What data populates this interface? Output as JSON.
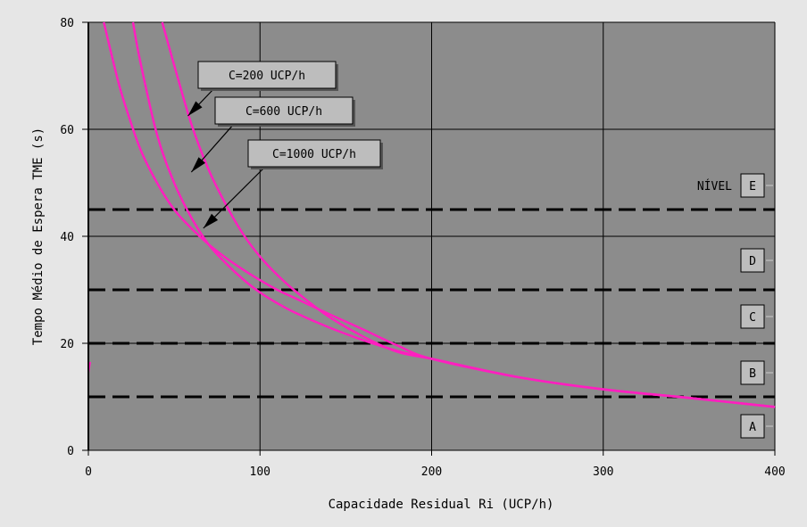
{
  "chart_data": {
    "type": "line",
    "xlabel": "Capacidade Residual Ri (UCP/h)",
    "ylabel": "Tempo Médio de Espera TME (s)",
    "xlim": [
      0,
      400
    ],
    "ylim": [
      0,
      80
    ],
    "xticks": [
      0,
      100,
      200,
      300,
      400
    ],
    "yticks": [
      0,
      20,
      40,
      60,
      80
    ],
    "grid": true,
    "colors": {
      "background": "#e6e6e6",
      "plot_area": "#8c8c8c",
      "series": "#ff1fbf",
      "grid": "#000000"
    },
    "series": [
      {
        "name": "C=200 UCP/h",
        "x": [
          43,
          50,
          60,
          70,
          80,
          90,
          100,
          110,
          120,
          140,
          160,
          180,
          200,
          250,
          300,
          350,
          400
        ],
        "y": [
          80,
          72,
          61,
          52.5,
          46,
          40.5,
          36.2,
          32.8,
          29.9,
          25,
          21.3,
          18.4,
          17.1,
          13.7,
          11.4,
          9.8,
          8.1
        ]
      },
      {
        "name": "C=600 UCP/h",
        "x": [
          26,
          30,
          40,
          50,
          60,
          70,
          80,
          90,
          100,
          110,
          120,
          140,
          160,
          180,
          200,
          250,
          300,
          350,
          400
        ],
        "y": [
          80,
          73,
          59,
          50,
          43.5,
          38.5,
          35,
          32,
          29.5,
          27.5,
          25.8,
          23,
          20.6,
          18.6,
          17.1,
          13.7,
          11.4,
          9.8,
          8.1
        ]
      },
      {
        "name": "C=1000 UCP/h",
        "x": [
          9,
          15,
          20,
          30,
          40,
          50,
          60,
          70,
          80,
          90,
          100,
          110,
          120,
          140,
          160,
          180,
          200,
          250,
          300,
          350,
          400
        ],
        "y": [
          80,
          72,
          66,
          56.5,
          50,
          45,
          41.5,
          38.5,
          36,
          33.8,
          31.8,
          30,
          28.5,
          25.5,
          22.6,
          19.6,
          17.1,
          13.7,
          11.4,
          9.8,
          8.1
        ]
      }
    ],
    "thresholds": [
      10,
      20,
      30,
      45
    ],
    "level_prefix": "NÍVEL",
    "levels": [
      {
        "label": "A",
        "y": 4.5
      },
      {
        "label": "B",
        "y": 14.5
      },
      {
        "label": "C",
        "y": 25
      },
      {
        "label": "D",
        "y": 35.5
      },
      {
        "label": "E",
        "y": 49.5
      }
    ],
    "annotations": [
      {
        "text": "C=200 UCP/h",
        "series": 0,
        "target": [
          58,
          62.5
        ]
      },
      {
        "text": "C=600 UCP/h",
        "series": 1,
        "target": [
          60,
          52
        ]
      },
      {
        "text": "C=1000 UCP/h",
        "series": 2,
        "target": [
          67,
          41.5
        ]
      }
    ]
  }
}
